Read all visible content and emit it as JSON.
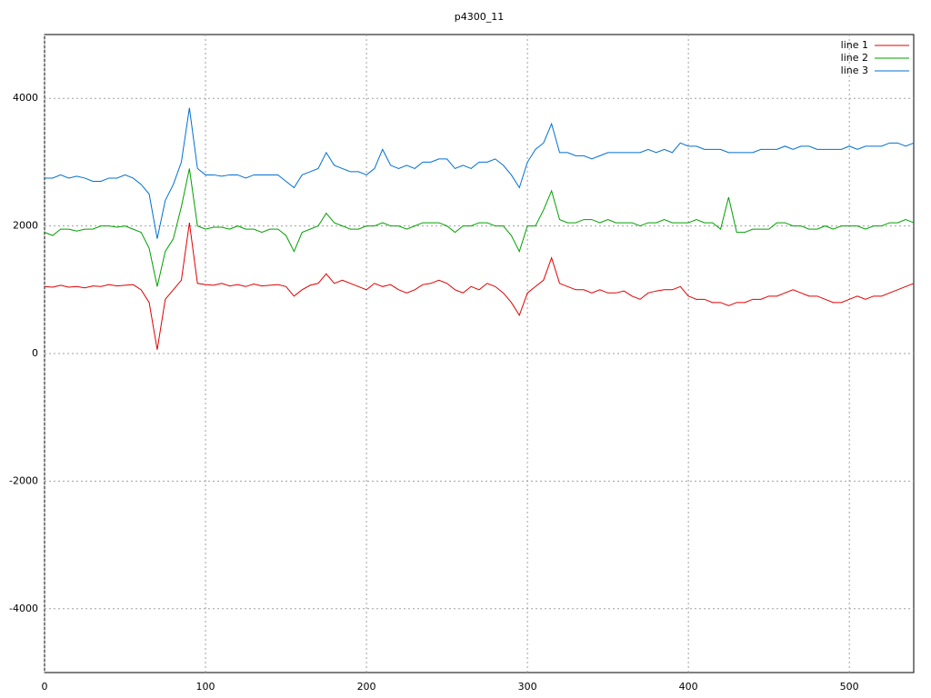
{
  "chart_data": {
    "type": "line",
    "title": "p4300_11",
    "x": [
      0,
      5,
      10,
      15,
      20,
      25,
      30,
      35,
      40,
      45,
      50,
      55,
      60,
      65,
      70,
      75,
      80,
      85,
      90,
      95,
      100,
      105,
      110,
      115,
      120,
      125,
      130,
      135,
      140,
      145,
      150,
      155,
      160,
      165,
      170,
      175,
      180,
      185,
      190,
      195,
      200,
      205,
      210,
      215,
      220,
      225,
      230,
      235,
      240,
      245,
      250,
      255,
      260,
      265,
      270,
      275,
      280,
      285,
      290,
      295,
      300,
      305,
      310,
      315,
      320,
      325,
      330,
      335,
      340,
      345,
      350,
      355,
      360,
      365,
      370,
      375,
      380,
      385,
      390,
      395,
      400,
      405,
      410,
      415,
      420,
      425,
      430,
      435,
      440,
      445,
      450,
      455,
      460,
      465,
      470,
      475,
      480,
      485,
      490,
      495,
      500,
      505,
      510,
      515,
      520,
      525,
      530,
      535,
      540
    ],
    "series": [
      {
        "name": "line 1",
        "color": "#e00000",
        "values": [
          1050,
          1040,
          1070,
          1040,
          1050,
          1030,
          1060,
          1050,
          1080,
          1060,
          1070,
          1080,
          1000,
          800,
          60,
          850,
          1000,
          1150,
          2050,
          1100,
          1080,
          1070,
          1100,
          1060,
          1080,
          1050,
          1090,
          1060,
          1070,
          1080,
          1050,
          900,
          1000,
          1070,
          1100,
          1250,
          1100,
          1150,
          1100,
          1050,
          1000,
          1100,
          1050,
          1080,
          1000,
          950,
          1000,
          1080,
          1100,
          1150,
          1100,
          1000,
          950,
          1050,
          1000,
          1100,
          1050,
          950,
          800,
          600,
          950,
          1050,
          1150,
          1500,
          1100,
          1050,
          1000,
          1000,
          950,
          1000,
          950,
          950,
          980,
          900,
          850,
          950,
          980,
          1000,
          1000,
          1050,
          900,
          850,
          850,
          800,
          800,
          750,
          800,
          800,
          850,
          850,
          900,
          900,
          950,
          1000,
          950,
          900,
          900,
          850,
          800,
          800,
          850,
          900,
          850,
          900,
          900,
          950,
          1000,
          1050,
          1100
        ]
      },
      {
        "name": "line 2",
        "color": "#00a000",
        "values": [
          1900,
          1850,
          1950,
          1950,
          1920,
          1950,
          1950,
          2000,
          2000,
          1980,
          2000,
          1950,
          1900,
          1650,
          1050,
          1600,
          1800,
          2300,
          2900,
          2000,
          1950,
          1980,
          1980,
          1950,
          2000,
          1950,
          1950,
          1900,
          1950,
          1950,
          1850,
          1600,
          1900,
          1950,
          2000,
          2200,
          2050,
          2000,
          1950,
          1950,
          2000,
          2000,
          2050,
          2000,
          2000,
          1950,
          2000,
          2050,
          2050,
          2050,
          2000,
          1900,
          2000,
          2000,
          2050,
          2050,
          2000,
          2000,
          1850,
          1600,
          2000,
          2000,
          2250,
          2550,
          2100,
          2050,
          2050,
          2100,
          2100,
          2050,
          2100,
          2050,
          2050,
          2050,
          2000,
          2050,
          2050,
          2100,
          2050,
          2050,
          2050,
          2100,
          2050,
          2050,
          1950,
          2450,
          1900,
          1900,
          1950,
          1950,
          1950,
          2050,
          2050,
          2000,
          2000,
          1950,
          1950,
          2000,
          1950,
          2000,
          2000,
          2000,
          1950,
          2000,
          2000,
          2050,
          2050,
          2100,
          2050
        ]
      },
      {
        "name": "line 3",
        "color": "#0070d0",
        "values": [
          2750,
          2750,
          2800,
          2750,
          2780,
          2750,
          2700,
          2700,
          2750,
          2750,
          2800,
          2750,
          2650,
          2500,
          1800,
          2400,
          2650,
          3000,
          3850,
          2900,
          2800,
          2800,
          2780,
          2800,
          2800,
          2750,
          2800,
          2800,
          2800,
          2800,
          2700,
          2600,
          2800,
          2850,
          2900,
          3150,
          2950,
          2900,
          2850,
          2850,
          2800,
          2900,
          3200,
          2950,
          2900,
          2950,
          2900,
          3000,
          3000,
          3050,
          3050,
          2900,
          2950,
          2900,
          3000,
          3000,
          3050,
          2950,
          2800,
          2600,
          3000,
          3200,
          3300,
          3600,
          3150,
          3150,
          3100,
          3100,
          3050,
          3100,
          3150,
          3150,
          3150,
          3150,
          3150,
          3200,
          3150,
          3200,
          3150,
          3300,
          3250,
          3250,
          3200,
          3200,
          3200,
          3150,
          3150,
          3150,
          3150,
          3200,
          3200,
          3200,
          3250,
          3200,
          3250,
          3250,
          3200,
          3200,
          3200,
          3200,
          3250,
          3200,
          3250,
          3250,
          3250,
          3300,
          3300,
          3250,
          3300
        ]
      }
    ],
    "xlim": [
      0,
      540
    ],
    "xticks": [
      0,
      100,
      200,
      300,
      400,
      500
    ],
    "ylim": [
      -5000,
      5000
    ],
    "yticks": [
      -4000,
      -2000,
      0,
      2000,
      4000
    ],
    "grid": true,
    "legend": "top-right"
  }
}
